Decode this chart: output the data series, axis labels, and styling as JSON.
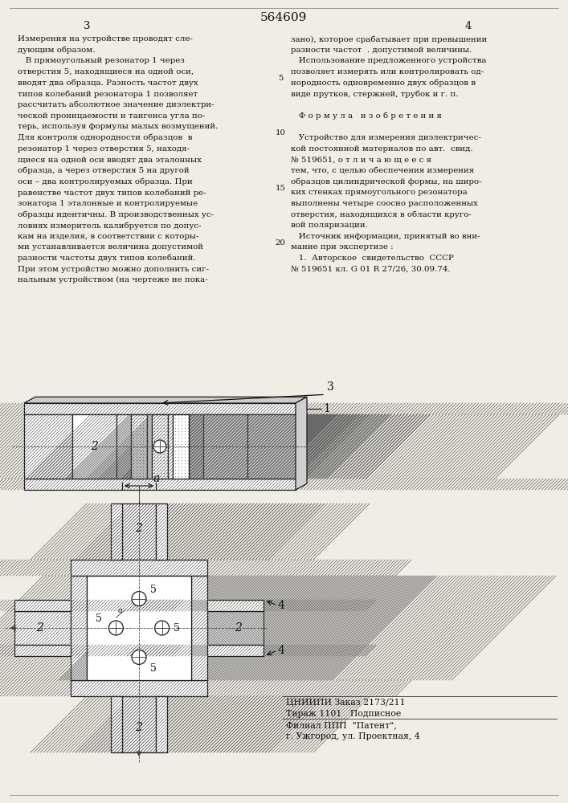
{
  "page_number_center": "564609",
  "page_number_left": "3",
  "page_number_right": "4",
  "bg_color": "#f0ede6",
  "text_color": "#111111",
  "left_column_text": [
    "Измерения на устройстве проводят сле-",
    "дующим образом.",
    "   В прямоугольный резонатор 1 через",
    "отверстия 5, находящиеся на одной оси,",
    "вводят два образца. Разность частот двух",
    "типов колебаний резонатора 1 позволяет",
    "рассчитать абсолютное значение диэлектри-",
    "ческой проницаемости и тангенса угла по-",
    "терь, используя формулы малых возмущений.",
    "Для контроля однородности образцов  в",
    "резонатор 1 через отверстия 5, находя-",
    "щиеся на одной оси вводят два эталонных",
    "образца, а через отверстия 5 на другой",
    "оси – два контролируемых образца. При",
    "равенстве частот двух типов колебаний ре-",
    "зонатора 1 эталонные и контролируемые",
    "образцы идентичны. В производственных ус-",
    "ловиях измеритель калибруется по допус-",
    "кам на изделия, в соответствии с которы-",
    "ми устанавливается величина допустимой",
    "разности частоты двух типов колебаний.",
    "При этом устройство можно дополнить сиг-",
    "нальным устройством (на чертеже не пока-"
  ],
  "right_column_text": [
    "зано), которое срабатывает при превышении",
    "разности частот  . допустимой величины.",
    "   Использование предложенного устройства",
    "позволяет измерять или контролировать од-",
    "нородность одновременно двух образцов в",
    "виде прутков, стержней, трубок и г. п.",
    "",
    "   Ф о р м у л а   и з о б р е т е н и я",
    "",
    "   Устройство для измерения диэлектричес-",
    "кой постоянной материалов по авт.  свид.",
    "№ 519651, о т л и ч а ю щ е е с я",
    "тем, что, с целью обеспечения измерения",
    "образцов цилиндрической формы, на широ-",
    "ких стенках прямоугольного резонатора",
    "выполнены четыре соосно расположенных",
    "отверстия, находящихся в области круго-",
    "вой поляризации.",
    "   Источник информации, принятый во вни-",
    "мание при экспертизе :",
    "   1.  Авторское  свидетельство  СССР",
    "№ 519651 кл. G 01 R 27/26, 30.09.74."
  ],
  "footer_left": "ЦНИИПИ Заказ 2173/211",
  "footer_mid1": "Тираж 1101   Подписное",
  "footer_mid2": "Филиал ППП  \"Патент\",",
  "footer_mid3": "г. Ужгород, ул. Проектная, 4"
}
